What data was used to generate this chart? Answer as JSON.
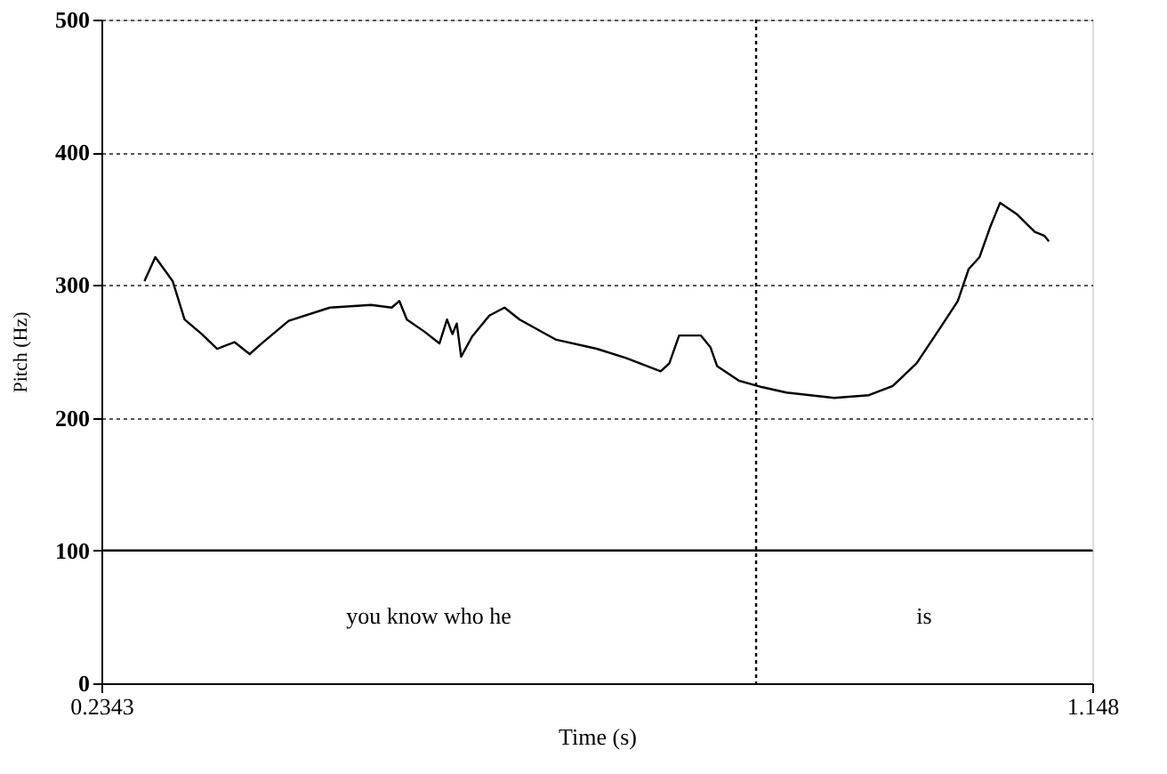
{
  "chart_data": {
    "type": "line",
    "xlabel": "Time (s)",
    "ylabel": "Pitch (Hz)",
    "x": [
      0.274,
      0.284,
      0.3,
      0.311,
      0.327,
      0.341,
      0.357,
      0.371,
      0.382,
      0.407,
      0.445,
      0.483,
      0.502,
      0.509,
      0.516,
      0.532,
      0.546,
      0.553,
      0.558,
      0.562,
      0.566,
      0.576,
      0.592,
      0.606,
      0.62,
      0.653,
      0.691,
      0.718,
      0.75,
      0.758,
      0.767,
      0.787,
      0.796,
      0.802,
      0.822,
      0.844,
      0.866,
      0.91,
      0.942,
      0.964,
      0.986,
      1.008,
      1.024,
      1.034,
      1.044,
      1.054,
      1.063,
      1.079,
      1.095,
      1.104,
      1.108
    ],
    "series": [
      {
        "color": "#000000",
        "values": [
          303,
          321,
          303,
          274,
          263,
          252,
          257,
          248,
          256,
          273,
          283,
          285,
          283,
          288,
          274,
          265,
          256,
          274,
          263,
          271,
          246,
          261,
          277,
          283,
          274,
          259,
          252,
          245,
          235,
          241,
          262,
          262,
          253,
          239,
          228,
          223,
          219,
          215,
          217,
          224,
          241,
          268,
          288,
          312,
          321,
          344,
          362,
          353,
          340,
          337,
          333
        ]
      }
    ],
    "xlim": [
      0.2343,
      1.148
    ],
    "xticks": [
      0.2343,
      1.148
    ],
    "ylim": [
      0,
      500
    ],
    "yticks": [
      0,
      100,
      200,
      300,
      400,
      500
    ],
    "grid": "y",
    "legend": false,
    "marker": "none",
    "line_style": "solid",
    "ref_lines": [
      {
        "axis": "y",
        "value": 100,
        "line_style": "solid",
        "color": "#000000"
      },
      {
        "axis": "x",
        "value": 0.838,
        "line_style": "dotted",
        "color": "#000000"
      }
    ],
    "annotations": [
      "you know who he",
      "is"
    ]
  }
}
